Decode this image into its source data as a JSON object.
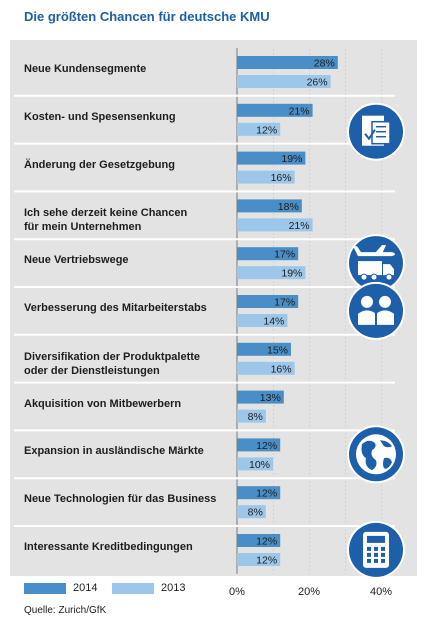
{
  "chart_data": {
    "type": "bar",
    "orientation": "horizontal",
    "title": "Die größten Chancen für deutsche KMU",
    "categories": [
      "Neue Kundensegmente",
      "Kosten- und Spesensenkung",
      "Änderung der Gesetzgebung",
      "Ich sehe derzeit keine Chancen\nfür mein Unternehmen",
      "Neue Vertriebswege",
      "Verbesserung des Mitarbeiterstabs",
      "Diversifikation der Produktpalette\noder der Dienstleistungen",
      "Akquisition von Mitbewerbern",
      "Expansion in ausländische Märkte",
      "Neue Technologien für das Business",
      "Interessante Kreditbedingungen"
    ],
    "series": [
      {
        "name": "2014",
        "color": "#4a8ec8",
        "values": [
          28,
          21,
          19,
          18,
          17,
          17,
          15,
          13,
          12,
          12,
          12
        ]
      },
      {
        "name": "2013",
        "color": "#9cc7ea",
        "values": [
          26,
          12,
          16,
          21,
          19,
          14,
          16,
          8,
          10,
          8,
          12
        ]
      }
    ],
    "value_suffix": "%",
    "xlim": [
      0,
      40
    ],
    "xticks": [
      "0%",
      "20%",
      "40%"
    ],
    "grid": true,
    "legend_position": "bottom",
    "icons": [
      {
        "row": 1,
        "name": "document-check-icon"
      },
      {
        "row": 4,
        "name": "plane-truck-icon"
      },
      {
        "row": 5,
        "name": "people-icon"
      },
      {
        "row": 8,
        "name": "globe-icon"
      },
      {
        "row": 10,
        "name": "calculator-icon"
      }
    ],
    "colors": {
      "title": "#1d5fa8",
      "icon_circle": "#1d5fa8",
      "panel": "#e3e3e3"
    }
  },
  "source": "Quelle: Zurich/GfK"
}
